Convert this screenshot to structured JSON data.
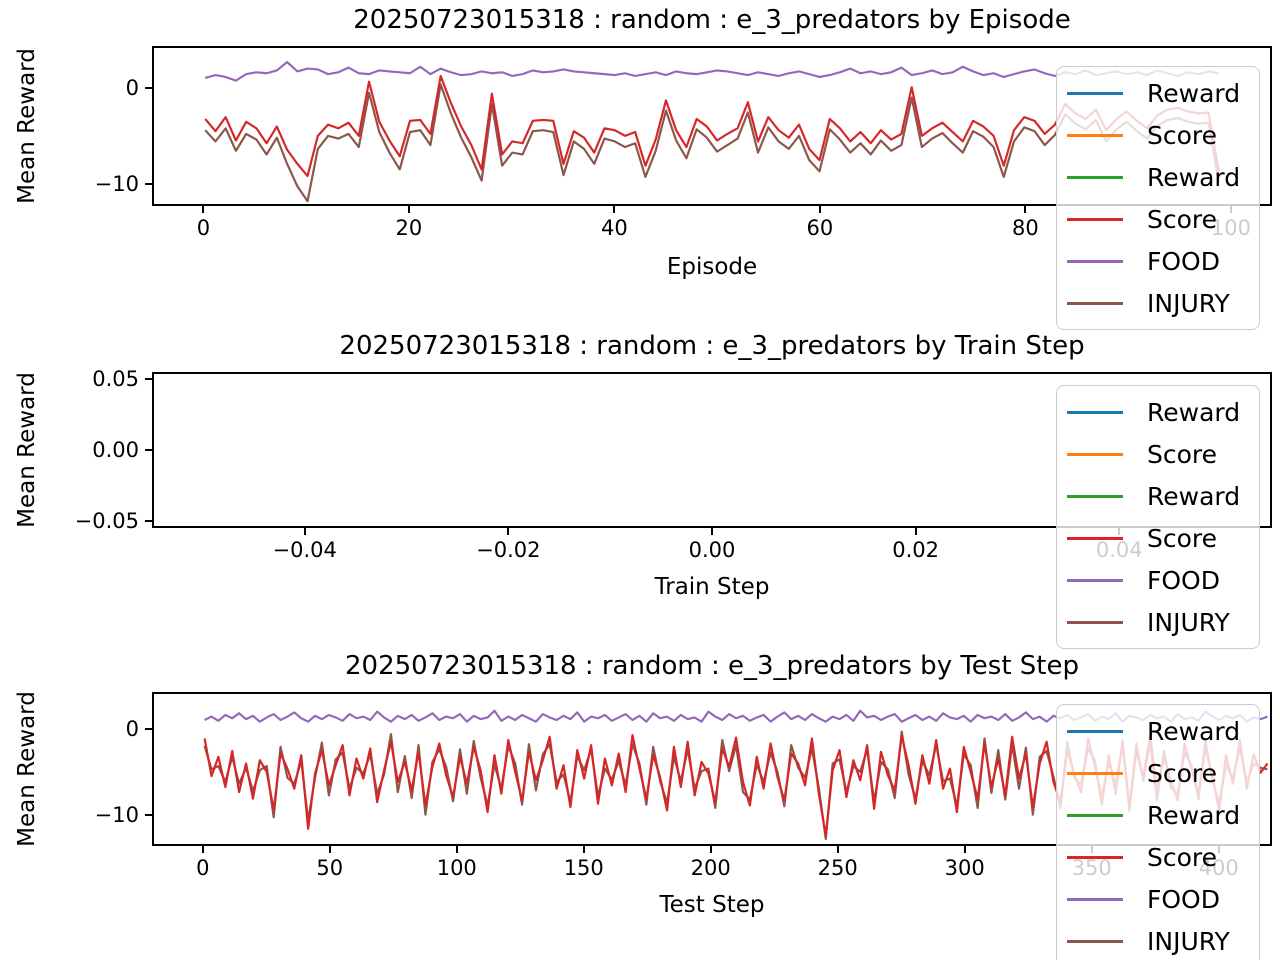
{
  "figure": {
    "background": "#ffffff"
  },
  "chart_data": [
    {
      "type": "line",
      "title": "20250723015318 : random : e_3_predators by Episode",
      "xlabel": "Episode",
      "ylabel": "Mean Reward",
      "xlim": [
        -5,
        104
      ],
      "ylim": [
        -12.3,
        4.4
      ],
      "x_ticks": [
        0,
        20,
        40,
        60,
        80,
        100
      ],
      "x_tick_labels": [
        "0",
        "20",
        "40",
        "60",
        "80",
        "100"
      ],
      "y_ticks": [
        0,
        -10
      ],
      "y_tick_labels": [
        "0",
        "−10"
      ],
      "grid": false,
      "legend_position": "upper right",
      "series": [
        {
          "name": "Reward",
          "color": "#1f77b4",
          "z": 1,
          "x0": 0,
          "x1": 99,
          "values": [],
          "note": "not visible in plot (hidden behind Score line)"
        },
        {
          "name": "Score",
          "color": "#ff7f0e",
          "z": 2,
          "x0": 0,
          "x1": 99,
          "values": [],
          "note": "not visible in plot (hidden behind Score line)"
        },
        {
          "name": "Reward",
          "color": "#2ca02c",
          "z": 3,
          "x0": 0,
          "x1": 99,
          "values": [],
          "note": "not visible in plot (hidden behind Score line)"
        },
        {
          "name": "Score",
          "color": "#d62728",
          "z": 5,
          "x0": 0,
          "x1": 99,
          "values": [
            -3.2,
            -4.5,
            -3.0,
            -5.5,
            -3.5,
            -4.2,
            -5.8,
            -4.0,
            -6.5,
            -8.0,
            -9.3,
            -5.0,
            -3.8,
            -4.2,
            -3.6,
            -5.0,
            0.8,
            -3.5,
            -5.5,
            -7.2,
            -3.4,
            -3.3,
            -4.8,
            1.4,
            -1.5,
            -4.0,
            -6.0,
            -8.6,
            -0.5,
            -7.0,
            -5.6,
            -5.8,
            -3.4,
            -3.3,
            -3.4,
            -8.0,
            -4.5,
            -5.2,
            -6.8,
            -4.2,
            -4.4,
            -5.0,
            -4.6,
            -8.2,
            -5.4,
            -1.2,
            -4.4,
            -6.2,
            -3.2,
            -4.0,
            -5.5,
            -4.8,
            -4.2,
            -1.4,
            -5.6,
            -3.0,
            -4.4,
            -5.2,
            -3.8,
            -6.4,
            -7.6,
            -3.2,
            -4.2,
            -5.6,
            -4.6,
            -5.8,
            -4.4,
            -5.4,
            -4.8,
            0.2,
            -5.0,
            -4.2,
            -3.6,
            -4.6,
            -5.6,
            -3.4,
            -4.0,
            -5.0,
            -8.2,
            -4.4,
            -3.0,
            -3.4,
            -4.8,
            -3.8,
            -1.6,
            -2.6,
            -3.2,
            -2.2,
            -4.4,
            -3.2,
            -2.4,
            -3.4,
            -4.2,
            -2.8,
            -2.2,
            -2.0,
            -2.4,
            -2.6,
            -2.5,
            -8.8
          ]
        },
        {
          "name": "FOOD",
          "color": "#9467bd",
          "z": 6,
          "x0": 0,
          "x1": 99,
          "values": [
            1.2,
            1.5,
            1.3,
            0.9,
            1.6,
            1.8,
            1.7,
            2.0,
            2.9,
            1.9,
            2.2,
            2.1,
            1.6,
            1.8,
            2.3,
            1.7,
            1.6,
            2.0,
            1.9,
            1.8,
            1.7,
            2.4,
            1.6,
            2.2,
            1.8,
            1.5,
            1.6,
            1.9,
            1.7,
            1.8,
            1.4,
            1.6,
            2.0,
            1.8,
            1.9,
            2.1,
            1.9,
            1.8,
            1.7,
            1.6,
            1.5,
            1.7,
            1.4,
            1.6,
            1.8,
            1.5,
            1.9,
            1.7,
            1.6,
            1.8,
            2.0,
            1.9,
            1.7,
            1.5,
            1.8,
            1.6,
            1.4,
            1.7,
            1.9,
            1.6,
            1.3,
            1.5,
            1.8,
            2.2,
            1.7,
            1.9,
            1.6,
            1.8,
            2.3,
            1.5,
            1.7,
            2.0,
            1.6,
            1.8,
            2.4,
            1.9,
            1.5,
            1.7,
            1.3,
            1.6,
            1.9,
            2.1,
            1.7,
            1.4,
            1.8,
            1.6,
            2.0,
            1.5,
            1.7,
            1.9,
            1.6,
            1.8,
            1.5,
            2.0,
            1.7,
            1.4,
            1.8,
            1.6,
            1.9,
            1.7
          ]
        },
        {
          "name": "INJURY",
          "color": "#8c564b",
          "z": 4,
          "x0": 0,
          "x1": 99,
          "values": [
            -4.4,
            -5.6,
            -4.2,
            -6.6,
            -4.8,
            -5.4,
            -7.0,
            -5.2,
            -8.0,
            -10.4,
            -12.0,
            -6.4,
            -5.0,
            -5.3,
            -4.8,
            -6.2,
            -0.4,
            -4.6,
            -6.8,
            -8.6,
            -4.6,
            -4.4,
            -6.0,
            0.5,
            -2.6,
            -5.2,
            -7.3,
            -9.8,
            -1.6,
            -8.2,
            -6.8,
            -7.0,
            -4.5,
            -4.4,
            -4.6,
            -9.2,
            -5.6,
            -6.4,
            -8.0,
            -5.3,
            -5.6,
            -6.2,
            -5.8,
            -9.4,
            -6.6,
            -2.3,
            -5.5,
            -7.4,
            -4.3,
            -5.2,
            -6.7,
            -6.0,
            -5.3,
            -2.5,
            -6.8,
            -4.1,
            -5.6,
            -6.4,
            -5.0,
            -7.6,
            -8.8,
            -4.3,
            -5.4,
            -6.8,
            -5.8,
            -7.0,
            -5.5,
            -6.6,
            -6.0,
            -0.9,
            -6.2,
            -5.3,
            -4.7,
            -5.8,
            -6.8,
            -4.5,
            -5.1,
            -6.2,
            -9.4,
            -5.6,
            -4.1,
            -4.5,
            -6.0,
            -4.9,
            -2.7,
            -3.7,
            -4.3,
            -3.3,
            -5.6,
            -4.3,
            -3.5,
            -4.5,
            -5.3,
            -3.9,
            -3.3,
            -3.1,
            -3.5,
            -3.7,
            -3.6,
            -10.0
          ]
        }
      ]
    },
    {
      "type": "line",
      "title": "20250723015318 : random : e_3_predators by Train Step",
      "xlabel": "Train Step",
      "ylabel": "Mean Reward",
      "xlim": [
        -0.055,
        0.055
      ],
      "ylim": [
        -0.055,
        0.055
      ],
      "x_ticks": [
        -0.04,
        -0.02,
        0.0,
        0.02,
        0.04
      ],
      "x_tick_labels": [
        "−0.04",
        "−0.02",
        "0.00",
        "0.02",
        "0.04"
      ],
      "y_ticks": [
        0.05,
        0.0,
        -0.05
      ],
      "y_tick_labels": [
        "0.05",
        "0.00",
        "−0.05"
      ],
      "grid": false,
      "legend_position": "upper right",
      "note": "empty axes - no data plotted",
      "series": [
        {
          "name": "Reward",
          "color": "#1f77b4",
          "z": 1,
          "x0": 0,
          "x1": 0,
          "values": []
        },
        {
          "name": "Score",
          "color": "#ff7f0e",
          "z": 2,
          "x0": 0,
          "x1": 0,
          "values": []
        },
        {
          "name": "Reward",
          "color": "#2ca02c",
          "z": 3,
          "x0": 0,
          "x1": 0,
          "values": []
        },
        {
          "name": "Score",
          "color": "#d62728",
          "z": 5,
          "x0": 0,
          "x1": 0,
          "values": []
        },
        {
          "name": "FOOD",
          "color": "#9467bd",
          "z": 6,
          "x0": 0,
          "x1": 0,
          "values": []
        },
        {
          "name": "INJURY",
          "color": "#8c564b",
          "z": 4,
          "x0": 0,
          "x1": 0,
          "values": []
        }
      ]
    },
    {
      "type": "line",
      "title": "20250723015318 : random : e_3_predators by Test Step",
      "xlabel": "Test Step",
      "ylabel": "Mean Reward",
      "xlim": [
        -20,
        421
      ],
      "ylim": [
        -13.6,
        4.3
      ],
      "x_ticks": [
        0,
        50,
        100,
        150,
        200,
        250,
        300,
        350,
        400
      ],
      "x_tick_labels": [
        "0",
        "50",
        "100",
        "150",
        "200",
        "250",
        "300",
        "350",
        "400"
      ],
      "y_ticks": [
        0,
        -10
      ],
      "y_tick_labels": [
        "0",
        "−10"
      ],
      "grid": false,
      "legend_position": "upper right",
      "series": [
        {
          "name": "Reward",
          "color": "#1f77b4",
          "z": 1,
          "x0": 0,
          "x1": 420,
          "values": [],
          "note": "not visible in plot (hidden behind Score line)"
        },
        {
          "name": "Score",
          "color": "#ff7f0e",
          "z": 2,
          "x0": 0,
          "x1": 420,
          "values": [],
          "note": "not visible in plot (hidden behind Score line)"
        },
        {
          "name": "Reward",
          "color": "#2ca02c",
          "z": 3,
          "x0": 0,
          "x1": 420,
          "values": [],
          "note": "not visible in plot (hidden behind Score line)"
        },
        {
          "name": "Score",
          "color": "#d62728",
          "z": 5,
          "x0": 0,
          "x1": 420,
          "values": [
            -1.0,
            -5.5,
            -3.2,
            -6.8,
            -2.5,
            -7.4,
            -4.0,
            -8.2,
            -3.6,
            -5.0,
            -9.5,
            -2.8,
            -4.6,
            -7.0,
            -3.0,
            -11.8,
            -5.2,
            -2.4,
            -6.6,
            -4.2,
            -1.8,
            -7.8,
            -3.4,
            -5.8,
            -2.2,
            -8.6,
            -4.8,
            -1.4,
            -6.2,
            -3.8,
            -7.2,
            -2.6,
            -9.0,
            -4.4,
            -1.6,
            -5.4,
            -8.0,
            -3.2,
            -6.4,
            -2.0,
            -4.8,
            -9.8,
            -3.0,
            -7.6,
            -1.2,
            -5.0,
            -8.4,
            -2.6,
            -6.0,
            -3.6,
            -0.8,
            -7.0,
            -4.2,
            -9.2,
            -2.4,
            -5.8,
            -1.8,
            -8.8,
            -3.4,
            -6.6,
            -2.8,
            -7.4,
            -0.6,
            -4.6,
            -8.2,
            -3.0,
            -5.6,
            -9.6,
            -2.0,
            -6.8,
            -1.4,
            -7.8,
            -3.8,
            -5.2,
            -8.6,
            -2.2,
            -4.4,
            -0.9,
            -6.2,
            -9.0,
            -3.2,
            -7.0,
            -1.6,
            -5.6,
            -8.4,
            -2.8,
            -4.0,
            -6.6,
            -1.0,
            -7.6,
            -12.6,
            -4.8,
            -2.4,
            -8.0,
            -3.6,
            -6.0,
            -1.8,
            -9.4,
            -2.6,
            -5.4,
            -7.2,
            -0.7,
            -4.2,
            -8.8,
            -3.0,
            -6.4,
            -1.2,
            -7.0,
            -4.6,
            -9.8,
            -2.0,
            -5.0,
            -8.2,
            -1.6,
            -6.8,
            -3.4,
            -7.8,
            -0.8,
            -5.8,
            -2.8,
            -9.2,
            -4.0,
            -1.4,
            -6.2,
            -8.6,
            -2.4,
            -5.2,
            -7.4,
            -1.0,
            -4.4,
            -8.0,
            -3.8,
            -6.6,
            -1.8,
            -9.0,
            -2.6,
            -5.6,
            -0.6,
            -7.2,
            -3.2,
            -6.0,
            -8.4,
            -1.6,
            -4.8,
            -7.6,
            -2.2,
            -5.4,
            -9.6,
            -3.0,
            -6.4,
            -1.2,
            -7.0,
            -2.9,
            -5.1,
            -4.0
          ]
        },
        {
          "name": "FOOD",
          "color": "#9467bd",
          "z": 6,
          "x0": 0,
          "x1": 420,
          "values": [
            1.2,
            1.6,
            1.1,
            1.8,
            1.4,
            2.0,
            1.3,
            1.7,
            1.0,
            1.5,
            1.9,
            1.2,
            1.6,
            2.1,
            1.4,
            1.0,
            1.7,
            1.3,
            1.8,
            1.5,
            1.1,
            1.9,
            1.4,
            1.6,
            1.2,
            2.2,
            1.5,
            1.0,
            1.7,
            1.3,
            1.8,
            1.1,
            1.5,
            2.0,
            1.2,
            1.6,
            1.4,
            1.9,
            1.0,
            1.7,
            1.3,
            1.5,
            2.3,
            1.1,
            1.6,
            1.2,
            1.8,
            1.4,
            1.0,
            1.9,
            1.5,
            1.2,
            1.7,
            1.3,
            2.1,
            1.0,
            1.6,
            1.4,
            1.8,
            1.1,
            1.5,
            1.9,
            1.2,
            1.7,
            1.0,
            2.0,
            1.4,
            1.6,
            1.1,
            1.8,
            1.3,
            1.5,
            1.0,
            2.2,
            1.6,
            1.2,
            1.9,
            1.4,
            1.7,
            1.1,
            1.5,
            1.8,
            1.0,
            1.6,
            2.1,
            1.3,
            1.7,
            1.2,
            1.9,
            1.4,
            1.0,
            1.6,
            1.3,
            1.8,
            1.1,
            2.3,
            1.5,
            1.7,
            1.2,
            1.6,
            1.9,
            1.0,
            1.4,
            1.8,
            1.2,
            1.6,
            1.1,
            2.0,
            1.5,
            1.3,
            1.7,
            1.0,
            1.8,
            1.4,
            1.6,
            1.2,
            1.9,
            1.1,
            1.5,
            2.1,
            1.3,
            1.6,
            1.0,
            1.7,
            1.4,
            1.8,
            1.2,
            1.5,
            1.9,
            1.1,
            1.6,
            1.3,
            2.0,
            1.0,
            1.7,
            1.5,
            1.2,
            1.8,
            1.4,
            1.6,
            1.0,
            1.9,
            1.3,
            1.5,
            1.1,
            2.2,
            1.6,
            1.2,
            1.7,
            1.4,
            1.8,
            1.0,
            1.5,
            1.3,
            1.6
          ]
        },
        {
          "name": "INJURY",
          "color": "#8c564b",
          "z": 4,
          "x0": 0,
          "x1": 420,
          "values": [
            -1.9,
            -4.7,
            -4.3,
            -6.2,
            -3.2,
            -6.4,
            -4.5,
            -7.3,
            -4.8,
            -4.3,
            -10.4,
            -2.0,
            -5.7,
            -6.4,
            -3.7,
            -10.8,
            -5.7,
            -1.5,
            -7.8,
            -3.5,
            -2.7,
            -7.0,
            -4.5,
            -5.2,
            -2.9,
            -7.6,
            -5.3,
            -0.5,
            -7.4,
            -3.1,
            -8.1,
            -1.8,
            -10.1,
            -3.8,
            -2.3,
            -4.4,
            -8.5,
            -2.3,
            -7.6,
            -1.3,
            -5.7,
            -9.0,
            -4.1,
            -7.0,
            -1.9,
            -4.0,
            -8.9,
            -1.7,
            -7.2,
            -2.9,
            -1.7,
            -6.2,
            -5.3,
            -8.6,
            -3.1,
            -4.8,
            -2.3,
            -7.9,
            -4.6,
            -5.9,
            -3.7,
            -6.6,
            -1.7,
            -4.0,
            -8.9,
            -2.0,
            -6.1,
            -8.7,
            -3.2,
            -6.1,
            -2.3,
            -7.0,
            -4.9,
            -4.6,
            -9.3,
            -1.2,
            -4.9,
            -1.8,
            -7.4,
            -8.3,
            -4.1,
            -6.2,
            -2.7,
            -5.0,
            -9.1,
            -1.8,
            -4.5,
            -5.7,
            -2.2,
            -6.9,
            -13.0,
            -4.0,
            -3.5,
            -7.4,
            -4.3,
            -5.0,
            -2.3,
            -8.5,
            -3.8,
            -4.7,
            -8.1,
            -0.2,
            -5.3,
            -8.2,
            -3.7,
            -5.4,
            -1.7,
            -6.1,
            -5.8,
            -9.1,
            -2.9,
            -4.2,
            -9.3,
            -1.0,
            -7.5,
            -2.4,
            -8.3,
            -1.7,
            -7.0,
            -2.1,
            -10.1,
            -3.2,
            -2.5,
            -5.6,
            -9.3,
            -1.4,
            -5.7,
            -6.5,
            -2.2,
            -3.7,
            -8.9,
            -3.0,
            -7.7,
            -1.2,
            -9.7,
            -1.6,
            -6.1,
            -1.5,
            -8.4,
            -2.5,
            -6.9,
            -7.6,
            -2.7,
            -4.2,
            -8.3,
            -1.2,
            -5.9,
            -8.7,
            -4.2,
            -5.7,
            -2.1,
            -6.2,
            -4.0,
            -4.5,
            -4.7
          ]
        }
      ]
    }
  ]
}
